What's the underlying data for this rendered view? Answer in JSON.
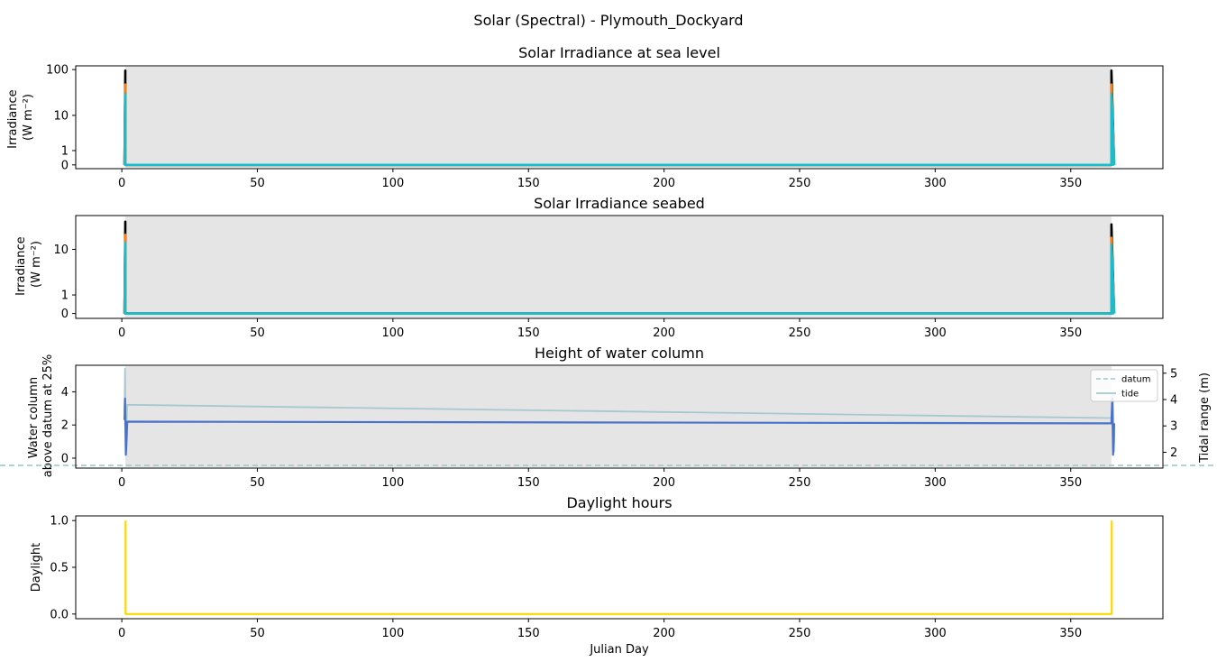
{
  "figure": {
    "suptitle": "Solar (Spectral) - Plymouth_Dockyard",
    "xlabel": "Julian Day"
  },
  "colors": {
    "night_shade": "#e5e5e5",
    "spectral": [
      "#000000",
      "#ff7f0e",
      "#17becf",
      "#2ca02c",
      "#d62728"
    ],
    "water_column": "#4a72c8",
    "datum": "#9ec9cf",
    "tide": "#a6c9cf",
    "tide_axis_label": "#5f9ea0",
    "daylight": "#ffd700"
  },
  "chart_data": [
    {
      "type": "line",
      "title": "Solar Irradiance at sea level",
      "ylabel_lines": [
        "Irradiance",
        "(W m⁻²)"
      ],
      "xlim": [
        -17,
        384
      ],
      "xticks": [
        0,
        50,
        100,
        150,
        200,
        250,
        300,
        350
      ],
      "yscale": "symlog",
      "ylim": [
        -0.2,
        120
      ],
      "yticks": [
        0,
        1,
        10,
        100
      ],
      "ytick_labels": [
        "0",
        "1",
        "10",
        "100"
      ],
      "night_shade": [
        1.3,
        365
      ],
      "series": [
        {
          "x": [
            1,
            1.3,
            1.3,
            365,
            365,
            366
          ],
          "y": [
            0,
            95,
            0,
            0,
            95,
            0
          ]
        },
        {
          "x": [
            1,
            1.3,
            1.3,
            365,
            365,
            366
          ],
          "y": [
            0,
            48,
            0,
            0,
            48,
            0
          ]
        },
        {
          "x": [
            1,
            1.3,
            1.3,
            365,
            365,
            366
          ],
          "y": [
            0,
            30,
            0,
            0,
            30,
            0
          ]
        }
      ]
    },
    {
      "type": "line",
      "title": "Solar Irradiance seabed",
      "ylabel_lines": [
        "Irradiance",
        "(W m⁻²)"
      ],
      "xlim": [
        -17,
        384
      ],
      "xticks": [
        0,
        50,
        100,
        150,
        200,
        250,
        300,
        350
      ],
      "yscale": "symlog",
      "ylim": [
        -0.2,
        38
      ],
      "yticks": [
        0,
        1,
        10
      ],
      "ytick_labels": [
        "0",
        "1",
        "10"
      ],
      "night_shade": [
        1.3,
        365
      ],
      "series": [
        {
          "x": [
            1,
            1.3,
            1.3,
            365,
            365,
            366
          ],
          "y": [
            0,
            30,
            0,
            0,
            27,
            0
          ]
        },
        {
          "x": [
            1,
            1.3,
            1.3,
            365,
            365,
            366
          ],
          "y": [
            0,
            18,
            0,
            0,
            16,
            0
          ]
        },
        {
          "x": [
            1,
            1.3,
            1.3,
            365,
            365,
            366
          ],
          "y": [
            0,
            13,
            0,
            0,
            12,
            0
          ]
        }
      ]
    },
    {
      "type": "line",
      "title": "Height of water column",
      "ylabel_lines": [
        "Water column",
        "above datum at 25%"
      ],
      "xlim": [
        -17,
        384
      ],
      "xticks": [
        0,
        50,
        100,
        150,
        200,
        250,
        300,
        350
      ],
      "ylim": [
        -0.6,
        5.6
      ],
      "yticks": [
        0,
        2,
        4
      ],
      "night_shade": [
        1.3,
        365
      ],
      "series": [
        {
          "x": [
            1,
            1.2,
            1.5,
            1.8,
            2,
            365,
            365.3,
            365.6,
            365.9,
            366
          ],
          "y": [
            2.3,
            3.6,
            0.2,
            1.2,
            2.2,
            2.1,
            3.6,
            0.2,
            1.0,
            2.1
          ]
        }
      ],
      "right_axis": {
        "ylabel": "Tidal range (m)",
        "ylim": [
          1.4,
          5.3
        ],
        "yticks": [
          2,
          3,
          4,
          5
        ],
        "datum": 1.5,
        "tide": {
          "x": [
            1,
            1.2,
            1.5,
            2,
            365,
            365.5,
            366
          ],
          "y": [
            3.5,
            5.2,
            2.0,
            3.8,
            3.3,
            4.2,
            2.0
          ]
        }
      },
      "legend": {
        "position": "upper right",
        "entries": [
          "datum",
          "tide"
        ]
      }
    },
    {
      "type": "line",
      "title": "Daylight hours",
      "ylabel": "Daylight",
      "xlabel": "Julian Day",
      "xlim": [
        -17,
        384
      ],
      "xticks": [
        0,
        50,
        100,
        150,
        200,
        250,
        300,
        350
      ],
      "ylim": [
        -0.05,
        1.05
      ],
      "yticks": [
        0,
        0.5,
        1
      ],
      "ytick_labels": [
        "0.0",
        "0.5",
        "1.0"
      ],
      "series": [
        {
          "x": [
            1.4,
            1.4,
            1.6,
            365,
            365.1,
            365.1
          ],
          "y": [
            1,
            0,
            0,
            0,
            0,
            1
          ]
        }
      ]
    }
  ]
}
